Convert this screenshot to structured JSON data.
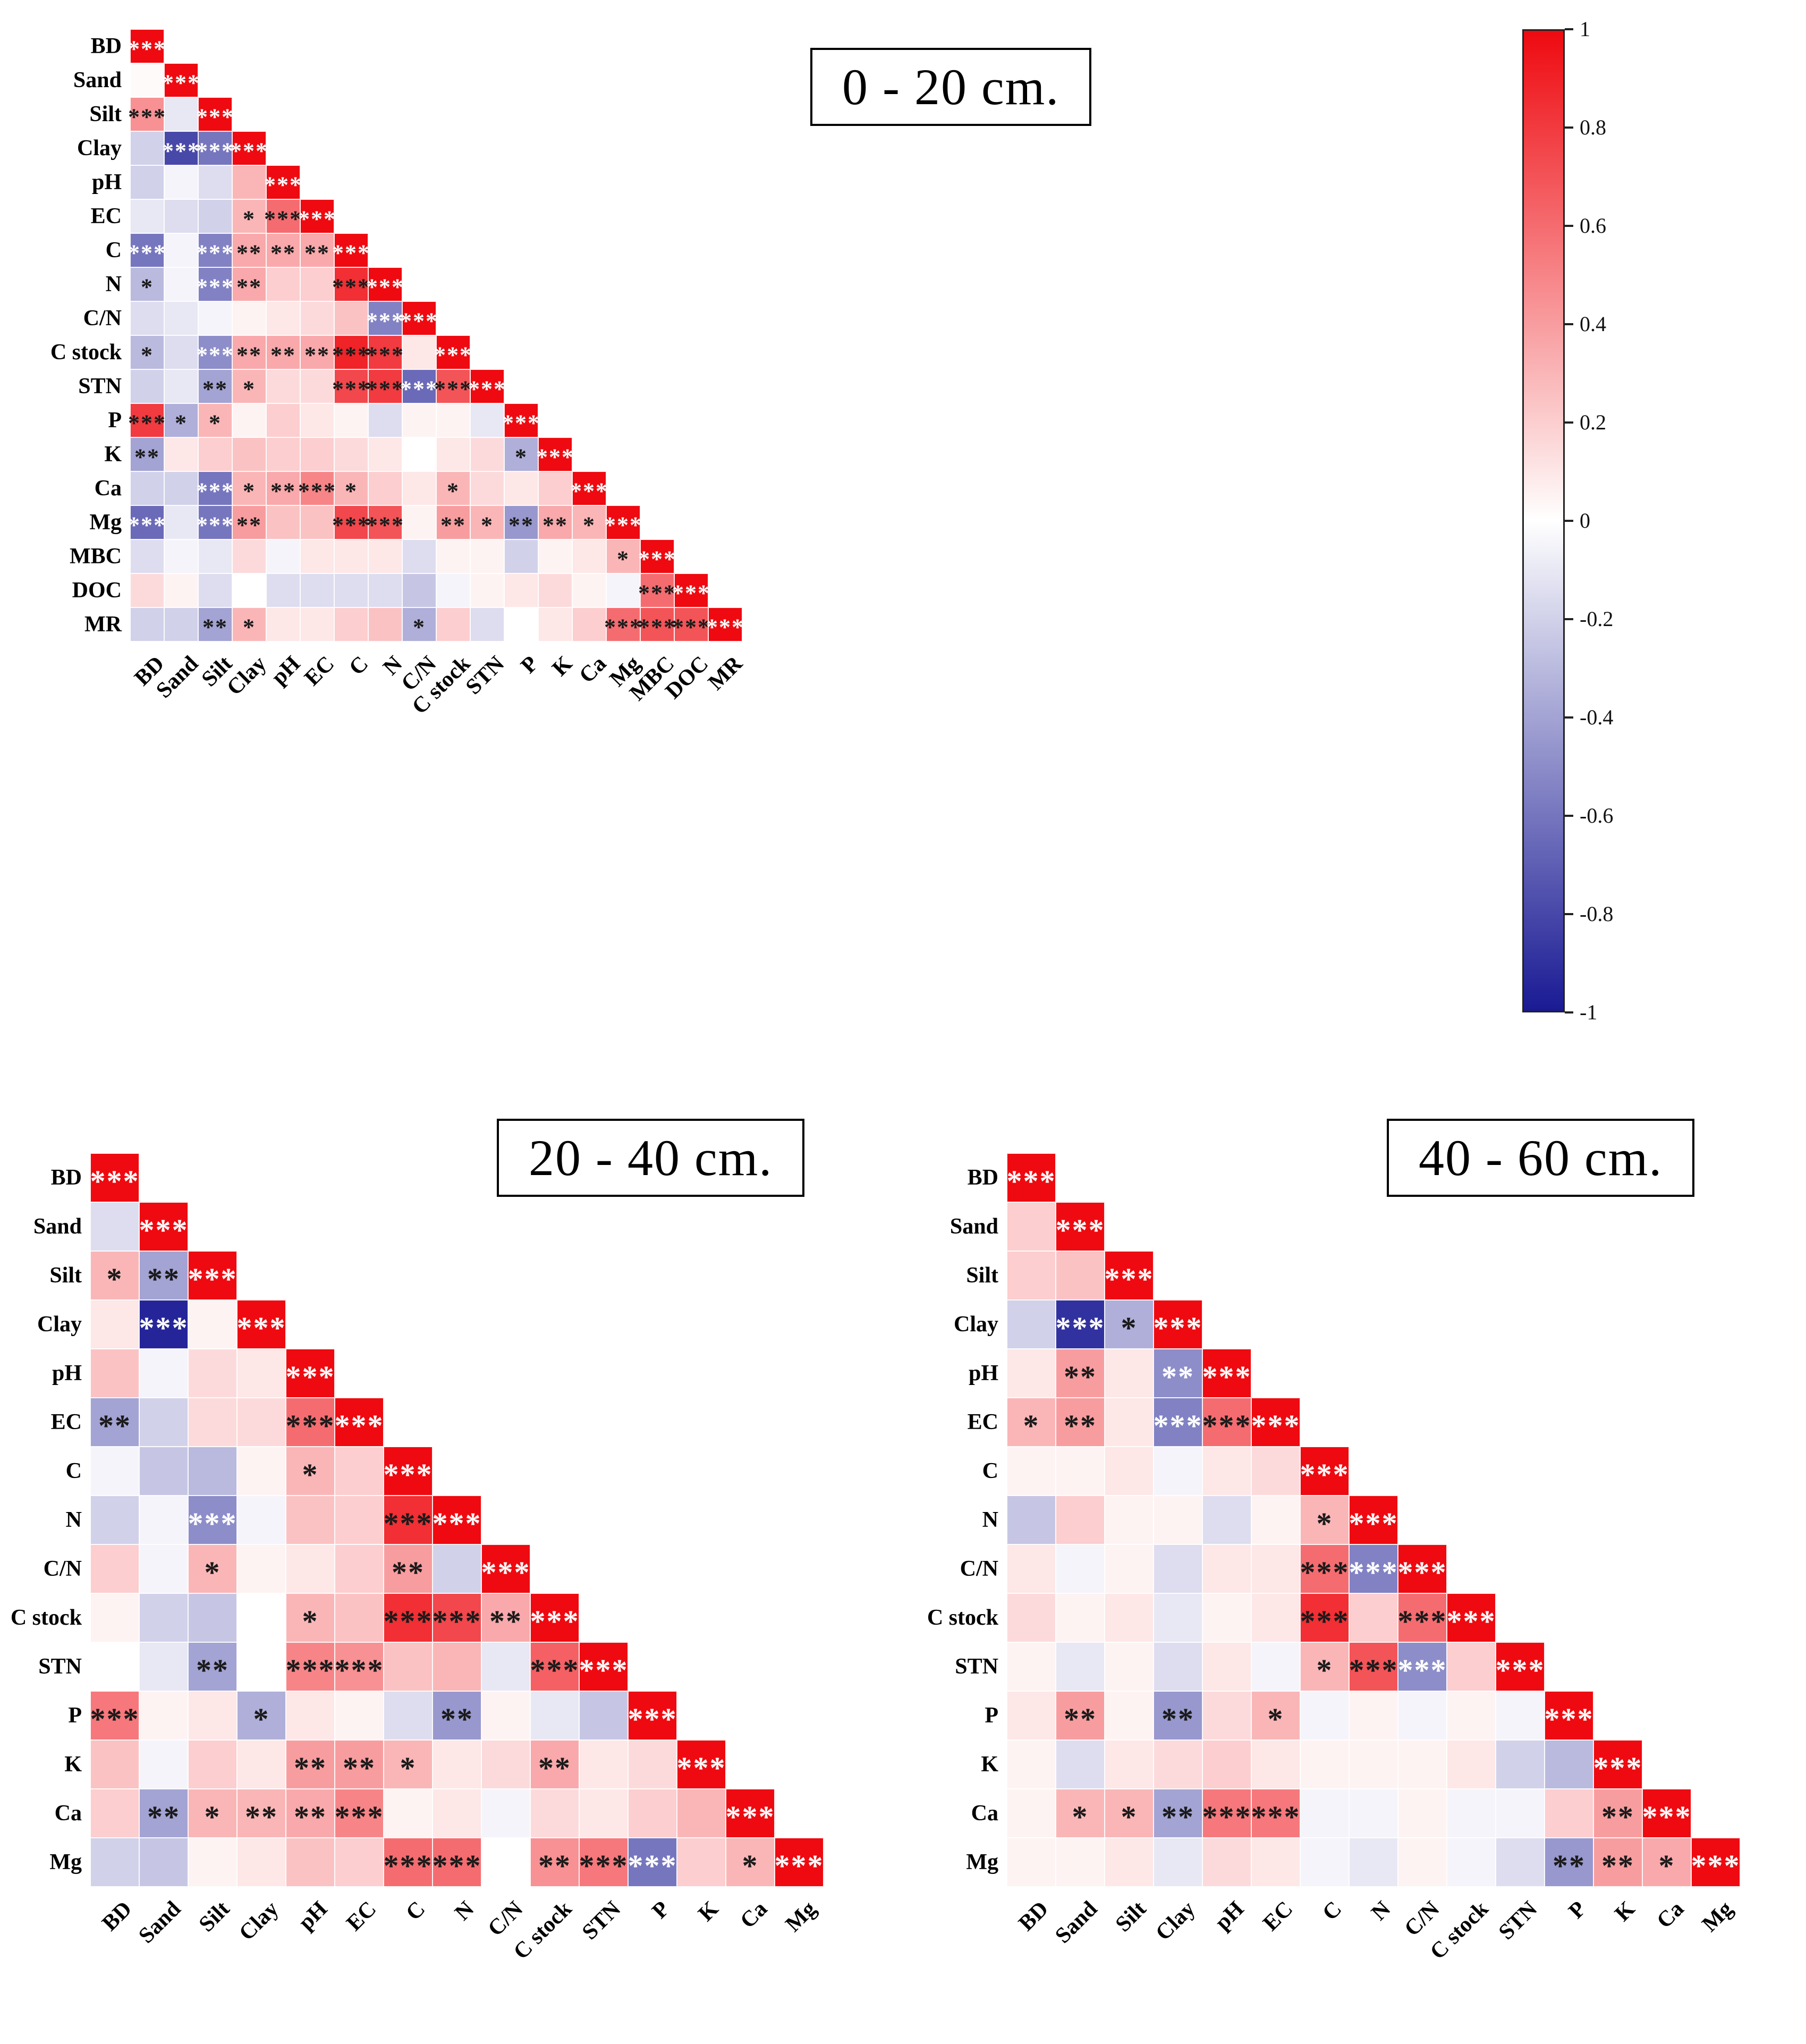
{
  "colorbar": {
    "ticks": [
      "1",
      "0.8",
      "0.6",
      "0.4",
      "0.2",
      "0",
      "-0.2",
      "-0.4",
      "-0.6",
      "-0.8",
      "-1"
    ],
    "max_color": "#ee0a10",
    "mid_color": "#ffffff",
    "min_color": "#1a1a94"
  },
  "chart_data": [
    {
      "type": "heatmap",
      "title": "0 - 20 cm.",
      "subtitle": "lower-triangular correlation matrix, significance: * p<0.05, ** p<0.01, *** p<0.001",
      "value_range": [
        -1,
        1
      ],
      "labels": [
        "BD",
        "Sand",
        "Silt",
        "Clay",
        "pH",
        "EC",
        "C",
        "N",
        "C/N",
        "C stock",
        "STN",
        "P",
        "K",
        "Ca",
        "Mg",
        "MBC",
        "DOC",
        "MR"
      ],
      "values": [
        [
          1
        ],
        [
          0.02,
          1
        ],
        [
          0.45,
          -0.1,
          1
        ],
        [
          -0.2,
          -0.8,
          -0.6,
          1
        ],
        [
          -0.2,
          -0.05,
          -0.15,
          0.3,
          1
        ],
        [
          -0.1,
          -0.15,
          -0.2,
          0.3,
          0.6,
          1
        ],
        [
          -0.6,
          -0.05,
          -0.55,
          0.35,
          0.35,
          0.35,
          1
        ],
        [
          -0.3,
          -0.05,
          -0.55,
          0.35,
          0.2,
          0.2,
          0.85,
          1
        ],
        [
          -0.15,
          -0.1,
          -0.05,
          0.05,
          0.1,
          0.15,
          0.25,
          -0.55,
          1
        ],
        [
          -0.3,
          -0.15,
          -0.5,
          0.35,
          0.35,
          0.35,
          0.9,
          0.8,
          0.1,
          1
        ],
        [
          -0.2,
          -0.1,
          -0.4,
          0.3,
          0.15,
          0.15,
          0.75,
          0.8,
          -0.65,
          0.7,
          1
        ],
        [
          0.8,
          -0.35,
          0.3,
          0.05,
          0.2,
          0.1,
          0.05,
          -0.15,
          0.05,
          0.05,
          -0.1,
          1
        ],
        [
          -0.4,
          0.1,
          0.2,
          0.25,
          0.2,
          0.2,
          0.15,
          0.1,
          0.0,
          0.1,
          0.15,
          -0.35,
          1
        ],
        [
          -0.2,
          -0.2,
          -0.6,
          0.3,
          0.35,
          0.5,
          0.3,
          0.2,
          0.1,
          0.3,
          0.15,
          0.1,
          0.2,
          1
        ],
        [
          -0.65,
          -0.1,
          -0.6,
          0.4,
          0.25,
          0.25,
          0.75,
          0.7,
          0.05,
          0.4,
          0.3,
          -0.45,
          0.35,
          0.3,
          1
        ],
        [
          -0.15,
          -0.05,
          -0.1,
          0.15,
          -0.05,
          0.1,
          0.1,
          0.1,
          -0.15,
          0.05,
          0.05,
          -0.2,
          0.05,
          0.1,
          0.3,
          1
        ],
        [
          0.15,
          0.05,
          -0.15,
          0.0,
          -0.15,
          -0.15,
          -0.15,
          -0.15,
          -0.25,
          -0.05,
          0.05,
          0.1,
          0.15,
          0.05,
          -0.05,
          0.6,
          1
        ],
        [
          -0.2,
          -0.2,
          -0.4,
          0.3,
          0.1,
          0.1,
          0.2,
          0.25,
          -0.35,
          0.2,
          -0.15,
          0.0,
          0.1,
          0.2,
          0.6,
          0.7,
          0.7,
          1
        ]
      ],
      "significance": [
        [
          "***"
        ],
        [
          "",
          "***"
        ],
        [
          "***",
          "",
          "***"
        ],
        [
          "",
          "***",
          "***",
          "***"
        ],
        [
          "",
          "",
          "",
          "",
          "***"
        ],
        [
          "",
          "",
          "",
          "*",
          "***",
          "***"
        ],
        [
          "***",
          "",
          "***",
          "**",
          "**",
          "**",
          "***"
        ],
        [
          "*",
          "",
          "***",
          "**",
          "",
          "",
          "***",
          "***"
        ],
        [
          "",
          "",
          "",
          "",
          "",
          "",
          "",
          "***",
          "***"
        ],
        [
          "*",
          "",
          "***",
          "**",
          "**",
          "**",
          "***",
          "***",
          "",
          "***"
        ],
        [
          "",
          "",
          "**",
          "*",
          "",
          "",
          "***",
          "***",
          "***",
          "***",
          "***"
        ],
        [
          "***",
          "*",
          "*",
          "",
          "",
          "",
          "",
          "",
          "",
          "",
          "",
          "***"
        ],
        [
          "**",
          "",
          "",
          "",
          "",
          "",
          "",
          "",
          "",
          "",
          "",
          "*",
          "***"
        ],
        [
          "",
          "",
          "***",
          "*",
          "**",
          "***",
          "*",
          "",
          "",
          "*",
          "",
          "",
          "",
          "***"
        ],
        [
          "***",
          "",
          "***",
          "**",
          "",
          "",
          "***",
          "***",
          "",
          "**",
          "*",
          "**",
          "**",
          "*",
          "***"
        ],
        [
          "",
          "",
          "",
          "",
          "",
          "",
          "",
          "",
          "",
          "",
          "",
          "",
          "",
          "",
          "*",
          "***"
        ],
        [
          "",
          "",
          "",
          "",
          "",
          "",
          "",
          "",
          "",
          "",
          "",
          "",
          "",
          "",
          "",
          "***",
          "***"
        ],
        [
          "",
          "",
          "**",
          "*",
          "",
          "",
          "",
          "",
          "*",
          "",
          "",
          "",
          "",
          "",
          "***",
          "***",
          "***",
          "***"
        ]
      ]
    },
    {
      "type": "heatmap",
      "title": "20 - 40 cm.",
      "subtitle": "lower-triangular correlation matrix, significance: * p<0.05, ** p<0.01, *** p<0.001",
      "value_range": [
        -1,
        1
      ],
      "labels": [
        "BD",
        "Sand",
        "Silt",
        "Clay",
        "pH",
        "EC",
        "C",
        "N",
        "C/N",
        "C stock",
        "STN",
        "P",
        "K",
        "Ca",
        "Mg"
      ],
      "values": [
        [
          1
        ],
        [
          -0.15,
          1
        ],
        [
          0.3,
          -0.4,
          1
        ],
        [
          0.1,
          -0.95,
          0.05,
          1
        ],
        [
          0.25,
          -0.05,
          0.15,
          0.1,
          1
        ],
        [
          -0.4,
          -0.2,
          0.15,
          0.15,
          0.6,
          1
        ],
        [
          -0.05,
          -0.25,
          -0.3,
          0.05,
          0.3,
          0.2,
          1
        ],
        [
          -0.2,
          -0.05,
          -0.5,
          -0.05,
          0.25,
          0.2,
          0.85,
          1
        ],
        [
          0.2,
          -0.05,
          0.3,
          0.05,
          0.1,
          0.2,
          0.4,
          -0.2,
          1
        ],
        [
          0.05,
          -0.2,
          -0.25,
          0.0,
          0.3,
          0.25,
          0.85,
          0.75,
          0.35,
          1
        ],
        [
          0.0,
          -0.1,
          -0.4,
          0.0,
          0.5,
          0.45,
          0.25,
          0.3,
          -0.1,
          0.65,
          1
        ],
        [
          0.55,
          0.05,
          0.1,
          -0.35,
          0.1,
          0.05,
          -0.15,
          -0.45,
          0.05,
          -0.1,
          -0.25,
          1
        ],
        [
          0.25,
          -0.05,
          0.2,
          0.1,
          0.4,
          0.4,
          0.3,
          0.1,
          0.15,
          0.35,
          0.1,
          0.15,
          1
        ],
        [
          0.2,
          -0.4,
          0.3,
          0.3,
          0.35,
          0.5,
          0.05,
          0.1,
          -0.05,
          0.15,
          0.1,
          0.2,
          0.3,
          1
        ],
        [
          -0.2,
          -0.25,
          0.05,
          0.1,
          0.25,
          0.2,
          0.6,
          0.6,
          0.0,
          0.45,
          0.55,
          -0.6,
          0.2,
          0.3,
          1
        ]
      ],
      "significance": [
        [
          "***"
        ],
        [
          "",
          "***"
        ],
        [
          "*",
          "**",
          "***"
        ],
        [
          "",
          "***",
          "",
          "***"
        ],
        [
          "",
          "",
          "",
          "",
          "***"
        ],
        [
          "**",
          "",
          "",
          "",
          "***",
          "***"
        ],
        [
          "",
          "",
          "",
          "",
          "*",
          "",
          "***"
        ],
        [
          "",
          "",
          "***",
          "",
          "",
          "",
          "***",
          "***"
        ],
        [
          "",
          "",
          "*",
          "",
          "",
          "",
          "**",
          "",
          "***"
        ],
        [
          "",
          "",
          "",
          "",
          "*",
          "",
          "***",
          "***",
          "**",
          "***"
        ],
        [
          "",
          "",
          "**",
          "",
          "***",
          "***",
          "",
          "",
          "",
          "***",
          "***"
        ],
        [
          "***",
          "",
          "",
          "*",
          "",
          "",
          "",
          "**",
          "",
          "",
          "",
          "***"
        ],
        [
          "",
          "",
          "",
          "",
          "**",
          "**",
          "*",
          "",
          "",
          "**",
          "",
          "",
          "***"
        ],
        [
          "",
          "**",
          "*",
          "**",
          "**",
          "***",
          "",
          "",
          "",
          "",
          "",
          "",
          "",
          "***"
        ],
        [
          "",
          "",
          "",
          "",
          "",
          "",
          "***",
          "***",
          "",
          "**",
          "***",
          "***",
          "",
          "*",
          "***"
        ]
      ]
    },
    {
      "type": "heatmap",
      "title": "40 - 60 cm.",
      "subtitle": "lower-triangular correlation matrix, significance: * p<0.05, ** p<0.01, *** p<0.001",
      "value_range": [
        -1,
        1
      ],
      "labels": [
        "BD",
        "Sand",
        "Silt",
        "Clay",
        "pH",
        "EC",
        "C",
        "N",
        "C/N",
        "C stock",
        "STN",
        "P",
        "K",
        "Ca",
        "Mg"
      ],
      "values": [
        [
          1
        ],
        [
          0.2,
          1
        ],
        [
          0.2,
          0.25,
          1
        ],
        [
          -0.2,
          -0.9,
          -0.35,
          1
        ],
        [
          0.1,
          0.4,
          0.1,
          -0.5,
          1
        ],
        [
          0.3,
          0.4,
          0.1,
          -0.55,
          0.6,
          1
        ],
        [
          0.05,
          0.05,
          0.1,
          -0.05,
          0.1,
          0.15,
          1
        ],
        [
          -0.25,
          0.2,
          0.05,
          0.05,
          -0.15,
          0.05,
          0.3,
          1
        ],
        [
          0.1,
          -0.05,
          0.05,
          -0.15,
          0.1,
          0.1,
          0.6,
          -0.55,
          1
        ],
        [
          0.15,
          0.05,
          0.1,
          -0.1,
          0.05,
          0.1,
          0.85,
          0.2,
          0.6,
          1
        ],
        [
          0.05,
          -0.1,
          0.05,
          -0.15,
          0.1,
          -0.05,
          0.3,
          0.7,
          -0.5,
          0.2,
          1
        ],
        [
          0.1,
          0.4,
          0.05,
          -0.45,
          0.15,
          0.3,
          -0.05,
          0.05,
          -0.05,
          0.05,
          -0.05,
          1
        ],
        [
          0.05,
          -0.15,
          0.1,
          0.15,
          0.2,
          0.1,
          0.05,
          0.05,
          0.05,
          0.1,
          -0.2,
          -0.3,
          1
        ],
        [
          0.05,
          0.3,
          0.3,
          -0.4,
          0.55,
          0.55,
          -0.05,
          -0.05,
          0.05,
          -0.05,
          -0.05,
          0.2,
          0.4,
          1
        ],
        [
          0.05,
          0.05,
          0.1,
          -0.1,
          0.15,
          0.1,
          -0.05,
          -0.1,
          0.05,
          -0.05,
          -0.15,
          -0.45,
          0.4,
          0.35,
          1
        ]
      ],
      "significance": [
        [
          "***"
        ],
        [
          "",
          "***"
        ],
        [
          "",
          "",
          "***"
        ],
        [
          "",
          "***",
          "*",
          "***"
        ],
        [
          "",
          "**",
          "",
          "**",
          "***"
        ],
        [
          "*",
          "**",
          "",
          "***",
          "***",
          "***"
        ],
        [
          "",
          "",
          "",
          "",
          "",
          "",
          "***"
        ],
        [
          "",
          "",
          "",
          "",
          "",
          "",
          "*",
          "***"
        ],
        [
          "",
          "",
          "",
          "",
          "",
          "",
          "***",
          "***",
          "***"
        ],
        [
          "",
          "",
          "",
          "",
          "",
          "",
          "***",
          "",
          "***",
          "***"
        ],
        [
          "",
          "",
          "",
          "",
          "",
          "",
          "*",
          "***",
          "***",
          "",
          "***"
        ],
        [
          "",
          "**",
          "",
          "**",
          "",
          "*",
          "",
          "",
          "",
          "",
          "",
          "***"
        ],
        [
          "",
          "",
          "",
          "",
          "",
          "",
          "",
          "",
          "",
          "",
          "",
          "",
          "***"
        ],
        [
          "",
          "*",
          "*",
          "**",
          "***",
          "***",
          "",
          "",
          "",
          "",
          "",
          "",
          "**",
          "***"
        ],
        [
          "",
          "",
          "",
          "",
          "",
          "",
          "",
          "",
          "",
          "",
          "",
          "**",
          "**",
          "*",
          "***"
        ]
      ]
    }
  ]
}
